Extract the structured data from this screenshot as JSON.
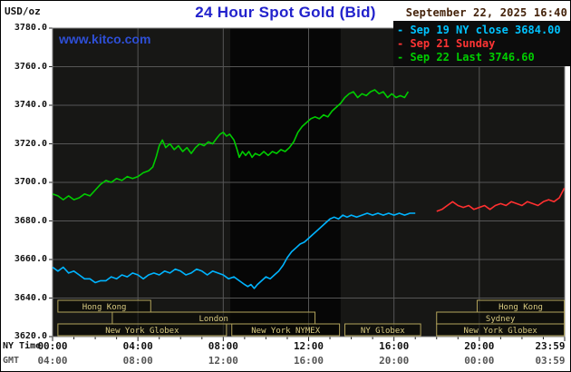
{
  "page": {
    "title": "24 Hour Spot Gold (Bid)",
    "unit_label": "USD/oz",
    "timestamp": "September 22, 2025 16:40",
    "watermark": "www.kitco.com"
  },
  "legend": [
    {
      "label": "- Sep 19 NY close 3684.00",
      "color": "#00c3ff"
    },
    {
      "label": "- Sep 21 Sunday",
      "color": "#ff3434"
    },
    {
      "label": "- Sep 22 Last 3746.60",
      "color": "#00cd00"
    }
  ],
  "axis": {
    "ny_time_label": "NY Time",
    "gmt_label": "GMT"
  },
  "colors": {
    "title": "#2222cc",
    "timestamp": "#44220a",
    "watermark": "#2e4fd6",
    "plot_bg": "#171715",
    "band": "#060606",
    "grid": "#565656",
    "border": "#7d7d7d",
    "session_text": "#d8ca80",
    "session_border": "#b3a45c",
    "tick": "#222222"
  },
  "chart_data": {
    "type": "line",
    "title": "24 Hour Spot Gold (Bid)",
    "ylabel": "USD/oz",
    "x_axis": {
      "min": 0,
      "max": 24,
      "ticks": [
        {
          "h": 0,
          "ny": "00:00",
          "gmt": "04:00"
        },
        {
          "h": 4,
          "ny": "04:00",
          "gmt": "08:00"
        },
        {
          "h": 8,
          "ny": "08:00",
          "gmt": "12:00"
        },
        {
          "h": 12,
          "ny": "12:00",
          "gmt": "16:00"
        },
        {
          "h": 16,
          "ny": "16:00",
          "gmt": "20:00"
        },
        {
          "h": 20,
          "ny": "20:00",
          "gmt": "00:00"
        },
        {
          "h": 23.983,
          "ny": "23:59",
          "gmt": "03:59"
        }
      ]
    },
    "y_axis": {
      "min": 3620,
      "max": 3780,
      "tick_step": 20,
      "ticks": [
        {
          "v": 3620,
          "label": "3620.0"
        },
        {
          "v": 3640,
          "label": "3640.0"
        },
        {
          "v": 3660,
          "label": "3660.0"
        },
        {
          "v": 3680,
          "label": "3680.0"
        },
        {
          "v": 3700,
          "label": "3700.0"
        },
        {
          "v": 3720,
          "label": "3720.0"
        },
        {
          "v": 3740,
          "label": "3740.0"
        },
        {
          "v": 3760,
          "label": "3760.0"
        },
        {
          "v": 3780,
          "label": "3780.0"
        }
      ]
    },
    "nymex_band": {
      "start": 8.33,
      "end": 13.5
    },
    "series": [
      {
        "name": "Sep 19 NY close",
        "close": 3684.0,
        "color": "#00b4ff",
        "points": [
          [
            0,
            3656
          ],
          [
            0.25,
            3654
          ],
          [
            0.5,
            3656
          ],
          [
            0.75,
            3653
          ],
          [
            1,
            3654
          ],
          [
            1.25,
            3652
          ],
          [
            1.5,
            3650
          ],
          [
            1.75,
            3650
          ],
          [
            2,
            3648
          ],
          [
            2.25,
            3649
          ],
          [
            2.5,
            3649
          ],
          [
            2.75,
            3651
          ],
          [
            3,
            3650
          ],
          [
            3.25,
            3652
          ],
          [
            3.5,
            3651
          ],
          [
            3.75,
            3653
          ],
          [
            4,
            3652
          ],
          [
            4.25,
            3650
          ],
          [
            4.5,
            3652
          ],
          [
            4.75,
            3653
          ],
          [
            5,
            3652
          ],
          [
            5.25,
            3654
          ],
          [
            5.5,
            3653
          ],
          [
            5.75,
            3655
          ],
          [
            6,
            3654
          ],
          [
            6.25,
            3652
          ],
          [
            6.5,
            3653
          ],
          [
            6.75,
            3655
          ],
          [
            7,
            3654
          ],
          [
            7.25,
            3652
          ],
          [
            7.5,
            3654
          ],
          [
            7.75,
            3653
          ],
          [
            8,
            3652
          ],
          [
            8.25,
            3650
          ],
          [
            8.5,
            3651
          ],
          [
            8.75,
            3649
          ],
          [
            9,
            3647
          ],
          [
            9.15,
            3646
          ],
          [
            9.3,
            3647
          ],
          [
            9.45,
            3645
          ],
          [
            9.6,
            3647
          ],
          [
            9.8,
            3649
          ],
          [
            10,
            3651
          ],
          [
            10.2,
            3650
          ],
          [
            10.4,
            3652
          ],
          [
            10.6,
            3654
          ],
          [
            10.8,
            3657
          ],
          [
            11,
            3661
          ],
          [
            11.2,
            3664
          ],
          [
            11.4,
            3666
          ],
          [
            11.6,
            3668
          ],
          [
            11.8,
            3669
          ],
          [
            12,
            3671
          ],
          [
            12.2,
            3673
          ],
          [
            12.5,
            3676
          ],
          [
            12.8,
            3679
          ],
          [
            13,
            3681
          ],
          [
            13.2,
            3682
          ],
          [
            13.4,
            3681
          ],
          [
            13.6,
            3683
          ],
          [
            13.8,
            3682
          ],
          [
            14,
            3683
          ],
          [
            14.25,
            3682
          ],
          [
            14.5,
            3683
          ],
          [
            14.75,
            3684
          ],
          [
            15,
            3683
          ],
          [
            15.25,
            3684
          ],
          [
            15.5,
            3683
          ],
          [
            15.75,
            3684
          ],
          [
            16,
            3683
          ],
          [
            16.25,
            3684
          ],
          [
            16.5,
            3683
          ],
          [
            16.75,
            3684
          ],
          [
            17,
            3684
          ]
        ]
      },
      {
        "name": "Sep 21 Sunday",
        "color": "#ff3030",
        "points": [
          [
            18,
            3685
          ],
          [
            18.25,
            3686
          ],
          [
            18.5,
            3688
          ],
          [
            18.75,
            3690
          ],
          [
            19,
            3688
          ],
          [
            19.25,
            3687
          ],
          [
            19.5,
            3688
          ],
          [
            19.75,
            3686
          ],
          [
            20,
            3687
          ],
          [
            20.25,
            3688
          ],
          [
            20.5,
            3686
          ],
          [
            20.75,
            3688
          ],
          [
            21,
            3689
          ],
          [
            21.25,
            3688
          ],
          [
            21.5,
            3690
          ],
          [
            21.75,
            3689
          ],
          [
            22,
            3688
          ],
          [
            22.25,
            3690
          ],
          [
            22.5,
            3689
          ],
          [
            22.75,
            3688
          ],
          [
            23,
            3690
          ],
          [
            23.25,
            3691
          ],
          [
            23.5,
            3690
          ],
          [
            23.75,
            3692
          ],
          [
            23.983,
            3697
          ]
        ]
      },
      {
        "name": "Sep 22 Last",
        "last": 3746.6,
        "color": "#00cc00",
        "points": [
          [
            0,
            3694
          ],
          [
            0.25,
            3693
          ],
          [
            0.5,
            3691
          ],
          [
            0.75,
            3693
          ],
          [
            1,
            3691
          ],
          [
            1.25,
            3692
          ],
          [
            1.5,
            3694
          ],
          [
            1.75,
            3693
          ],
          [
            2,
            3696
          ],
          [
            2.25,
            3699
          ],
          [
            2.5,
            3701
          ],
          [
            2.75,
            3700
          ],
          [
            3,
            3702
          ],
          [
            3.25,
            3701
          ],
          [
            3.5,
            3703
          ],
          [
            3.75,
            3702
          ],
          [
            4,
            3703
          ],
          [
            4.25,
            3705
          ],
          [
            4.5,
            3706
          ],
          [
            4.7,
            3708
          ],
          [
            4.85,
            3713
          ],
          [
            5,
            3719
          ],
          [
            5.15,
            3722
          ],
          [
            5.3,
            3718
          ],
          [
            5.5,
            3720
          ],
          [
            5.7,
            3717
          ],
          [
            5.9,
            3719
          ],
          [
            6.1,
            3716
          ],
          [
            6.3,
            3718
          ],
          [
            6.5,
            3715
          ],
          [
            6.7,
            3718
          ],
          [
            6.9,
            3720
          ],
          [
            7.1,
            3719
          ],
          [
            7.3,
            3721
          ],
          [
            7.5,
            3720
          ],
          [
            7.7,
            3723
          ],
          [
            7.85,
            3725
          ],
          [
            8,
            3726
          ],
          [
            8.15,
            3724
          ],
          [
            8.3,
            3725
          ],
          [
            8.5,
            3722
          ],
          [
            8.65,
            3717
          ],
          [
            8.75,
            3713
          ],
          [
            8.9,
            3716
          ],
          [
            9.05,
            3714
          ],
          [
            9.2,
            3716
          ],
          [
            9.35,
            3713
          ],
          [
            9.5,
            3715
          ],
          [
            9.7,
            3714
          ],
          [
            9.9,
            3716
          ],
          [
            10.1,
            3714
          ],
          [
            10.3,
            3716
          ],
          [
            10.5,
            3715
          ],
          [
            10.7,
            3717
          ],
          [
            10.9,
            3716
          ],
          [
            11.1,
            3718
          ],
          [
            11.3,
            3721
          ],
          [
            11.5,
            3726
          ],
          [
            11.7,
            3729
          ],
          [
            11.9,
            3731
          ],
          [
            12.1,
            3733
          ],
          [
            12.3,
            3734
          ],
          [
            12.5,
            3733
          ],
          [
            12.7,
            3735
          ],
          [
            12.9,
            3734
          ],
          [
            13.1,
            3737
          ],
          [
            13.3,
            3739
          ],
          [
            13.5,
            3741
          ],
          [
            13.7,
            3744
          ],
          [
            13.9,
            3746
          ],
          [
            14.1,
            3747
          ],
          [
            14.3,
            3744
          ],
          [
            14.5,
            3746
          ],
          [
            14.7,
            3745
          ],
          [
            14.9,
            3747
          ],
          [
            15.1,
            3748
          ],
          [
            15.3,
            3746
          ],
          [
            15.5,
            3747
          ],
          [
            15.7,
            3744
          ],
          [
            15.9,
            3746
          ],
          [
            16.1,
            3744
          ],
          [
            16.3,
            3745
          ],
          [
            16.5,
            3744
          ],
          [
            16.67,
            3747
          ]
        ]
      }
    ],
    "sessions": [
      {
        "row": 0,
        "start": 0.25,
        "end": 4.6,
        "label": "Hong Kong"
      },
      {
        "row": 0,
        "start": 19.9,
        "end": 23.983,
        "label": "Hong Kong"
      },
      {
        "row": 1,
        "start": 2.8,
        "end": 12.3,
        "label": "London"
      },
      {
        "row": 1,
        "start": 18.0,
        "end": 23.983,
        "label": "Sydney"
      },
      {
        "row": 2,
        "start": 0.25,
        "end": 8.15,
        "label": "New York Globex"
      },
      {
        "row": 2,
        "start": 8.4,
        "end": 13.45,
        "label": "New York NYMEX"
      },
      {
        "row": 2,
        "start": 13.7,
        "end": 17.25,
        "label": "NY Globex"
      },
      {
        "row": 2,
        "start": 18.0,
        "end": 23.983,
        "label": "New York Globex"
      }
    ]
  }
}
